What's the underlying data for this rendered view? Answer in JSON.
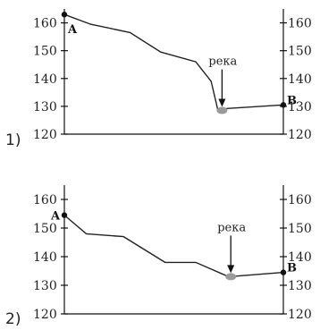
{
  "chart_data": [
    {
      "type": "line",
      "option_label": "1)",
      "ylim": [
        120,
        165
      ],
      "yticks": [
        120,
        130,
        140,
        150,
        160
      ],
      "tick_labels": [
        "120",
        "130",
        "140",
        "150",
        "160"
      ],
      "series": [
        {
          "points": [
            {
              "x": 0,
              "y": 163
            },
            {
              "x": 0.12,
              "y": 159.5
            },
            {
              "x": 0.3,
              "y": 156.5
            },
            {
              "x": 0.44,
              "y": 149.5
            },
            {
              "x": 0.6,
              "y": 146
            },
            {
              "x": 0.67,
              "y": 139
            },
            {
              "x": 0.7,
              "y": 129
            },
            {
              "x": 1.0,
              "y": 130.5
            }
          ]
        }
      ],
      "start_label": "A",
      "end_label": "B",
      "river_label": "река",
      "river_point": {
        "x": 0.72,
        "y": 128.5
      }
    },
    {
      "type": "line",
      "option_label": "2)",
      "ylim": [
        120,
        165
      ],
      "yticks": [
        120,
        130,
        140,
        150,
        160
      ],
      "tick_labels": [
        "120",
        "130",
        "140",
        "150",
        "160"
      ],
      "series": [
        {
          "points": [
            {
              "x": 0,
              "y": 154.5
            },
            {
              "x": 0.1,
              "y": 148
            },
            {
              "x": 0.27,
              "y": 147
            },
            {
              "x": 0.46,
              "y": 138
            },
            {
              "x": 0.6,
              "y": 138
            },
            {
              "x": 0.75,
              "y": 133
            },
            {
              "x": 1.0,
              "y": 134.5
            }
          ]
        }
      ],
      "start_label": "A",
      "end_label": "B",
      "river_label": "река",
      "river_point": {
        "x": 0.76,
        "y": 133
      }
    }
  ]
}
